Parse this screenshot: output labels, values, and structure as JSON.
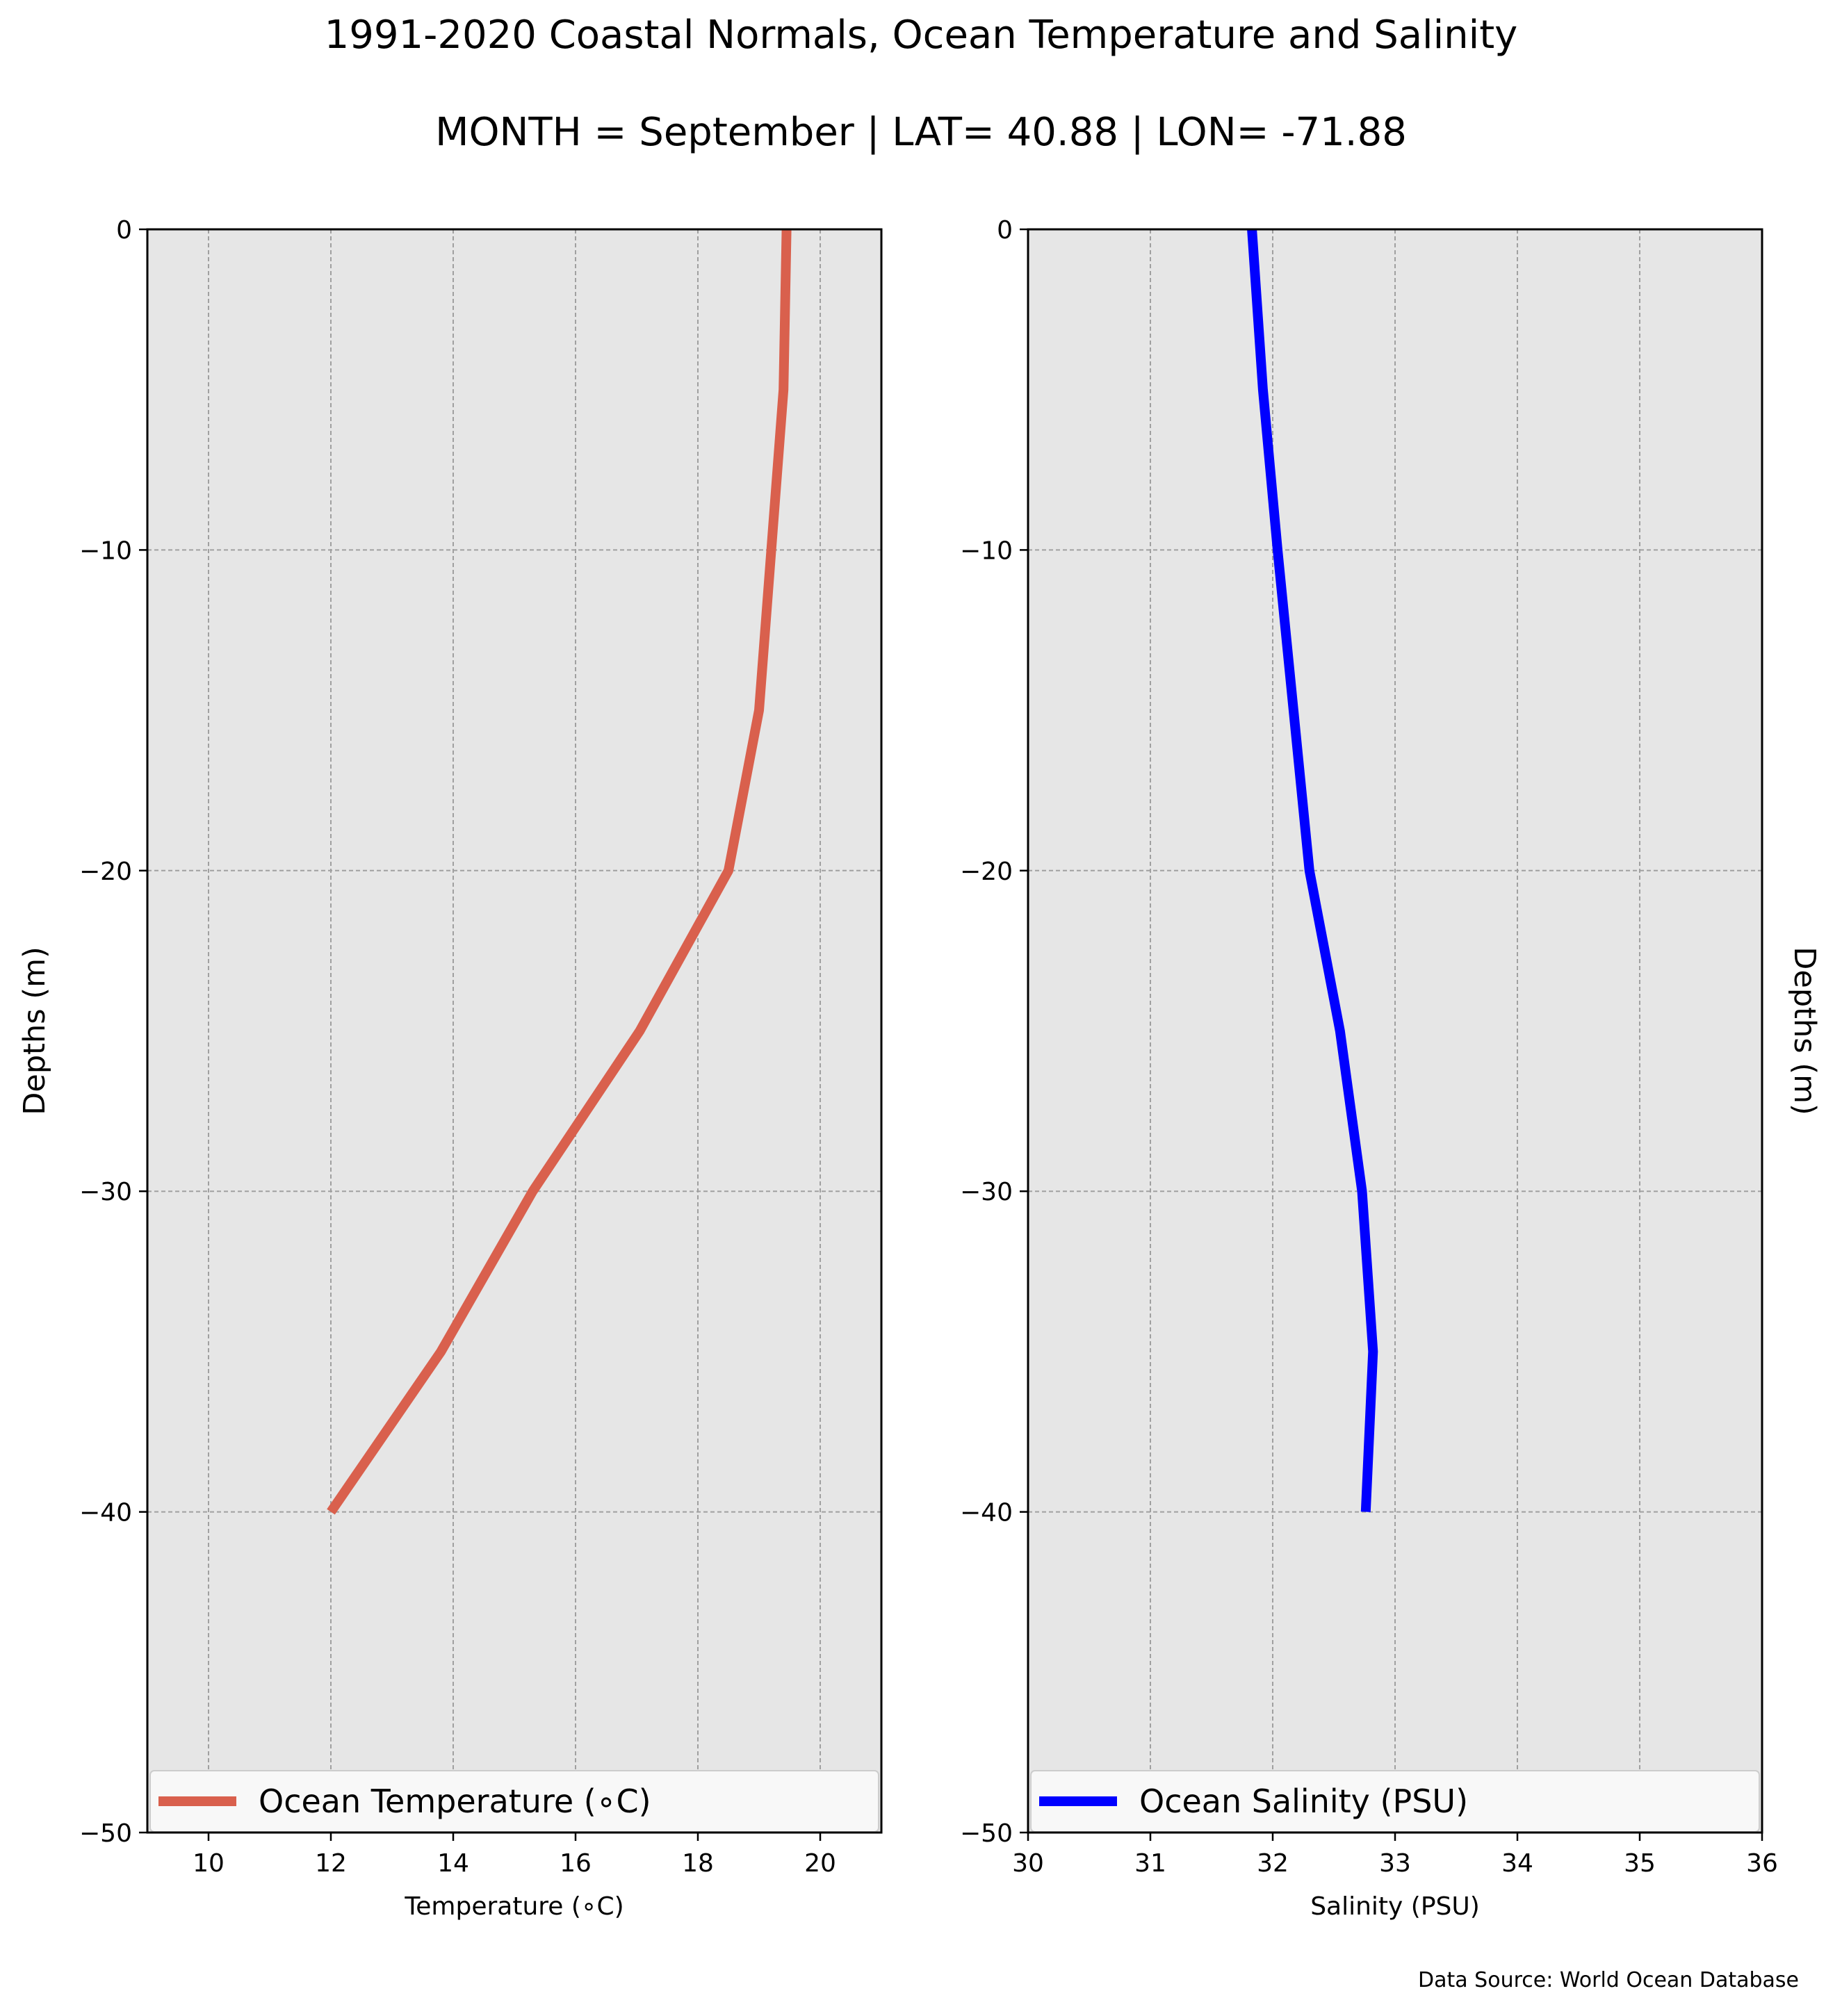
{
  "title": "1991-2020 Coastal Normals, Ocean Temperature and Salinity",
  "subtitle": "MONTH = September | LAT= 40.88 | LON= -71.88",
  "source": "Data Source: World Ocean Database",
  "colors": {
    "temperature": "#d9604d",
    "salinity": "#0000ff",
    "plot_background": "#e6e6e6",
    "grid": "#a0a0a0"
  },
  "chart_data": [
    {
      "type": "line",
      "xlabel": "Temperature (∘C)",
      "ylabel": "Depths (m)",
      "xlim": [
        9,
        21
      ],
      "ylim": [
        -50,
        0
      ],
      "xticks": [
        10,
        12,
        14,
        16,
        18,
        20
      ],
      "xtick_labels": [
        "10",
        "12",
        "14",
        "16",
        "18",
        "20"
      ],
      "yticks": [
        0,
        -10,
        -20,
        -30,
        -40,
        -50
      ],
      "ytick_labels": [
        "0",
        "−10",
        "−20",
        "−30",
        "−40",
        "−50"
      ],
      "grid": true,
      "legend": "bottom",
      "series": [
        {
          "name": "Ocean Temperature (∘C)",
          "x": [
            19.45,
            19.4,
            19.2,
            19.0,
            18.5,
            17.05,
            15.3,
            13.8,
            12.0
          ],
          "y": [
            0,
            -5,
            -10,
            -15,
            -20,
            -25,
            -30,
            -35,
            -40
          ]
        }
      ]
    },
    {
      "type": "line",
      "xlabel": "Salinity (PSU)",
      "ylabel": "Depths (m)",
      "xlim": [
        30,
        36
      ],
      "ylim": [
        -50,
        0
      ],
      "xticks": [
        30,
        31,
        32,
        33,
        34,
        35,
        36
      ],
      "xtick_labels": [
        "30",
        "31",
        "32",
        "33",
        "34",
        "35",
        "36"
      ],
      "yticks": [
        0,
        -10,
        -20,
        -30,
        -40,
        -50
      ],
      "ytick_labels": [
        "0",
        "−10",
        "−20",
        "−30",
        "−40",
        "−50"
      ],
      "grid": true,
      "legend": "bottom",
      "series": [
        {
          "name": "Ocean Salinity (PSU)",
          "x": [
            31.83,
            31.92,
            32.04,
            32.17,
            32.3,
            32.55,
            32.73,
            32.82,
            32.76
          ],
          "y": [
            0,
            -5,
            -10,
            -15,
            -20,
            -25,
            -30,
            -35,
            -40
          ]
        }
      ]
    }
  ]
}
